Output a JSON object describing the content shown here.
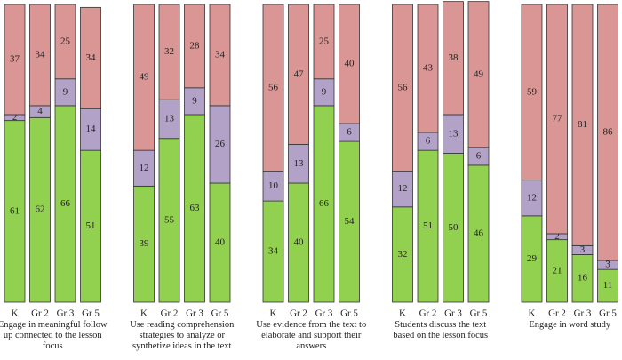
{
  "chart_data": {
    "type": "stacked-bar",
    "groups": [
      "Engage in meaningful follow up connected to the lesson focus",
      "Use reading comprehension strategies to analyze or synthetize ideas in the text",
      "Use evidence from the text to elaborate and support their answers",
      "Students discuss the text based on the lesson focus",
      "Engage in word study"
    ],
    "categories": [
      "K",
      "Gr 2",
      "Gr 3",
      "Gr 5",
      "K",
      "Gr 2",
      "Gr 3",
      "Gr 5",
      "K",
      "Gr 2",
      "Gr 3",
      "Gr 5",
      "K",
      "Gr 2",
      "Gr 3",
      "Gr 5",
      "K",
      "Gr 2",
      "Gr 3",
      "Gr 5"
    ],
    "series": [
      {
        "color": "#92d050",
        "values": [
          61,
          62,
          66,
          51,
          39,
          55,
          63,
          40,
          34,
          40,
          66,
          54,
          32,
          51,
          50,
          46,
          29,
          21,
          16,
          11
        ]
      },
      {
        "color": "#b3a2c7",
        "values": [
          2,
          4,
          9,
          14,
          12,
          13,
          9,
          26,
          10,
          13,
          9,
          6,
          12,
          6,
          13,
          6,
          12,
          2,
          3,
          3
        ]
      },
      {
        "color": "#d99694",
        "values": [
          37,
          34,
          25,
          34,
          49,
          32,
          28,
          34,
          56,
          47,
          25,
          40,
          56,
          43,
          38,
          49,
          59,
          77,
          81,
          86
        ]
      }
    ],
    "ylim": [
      0,
      100
    ]
  }
}
